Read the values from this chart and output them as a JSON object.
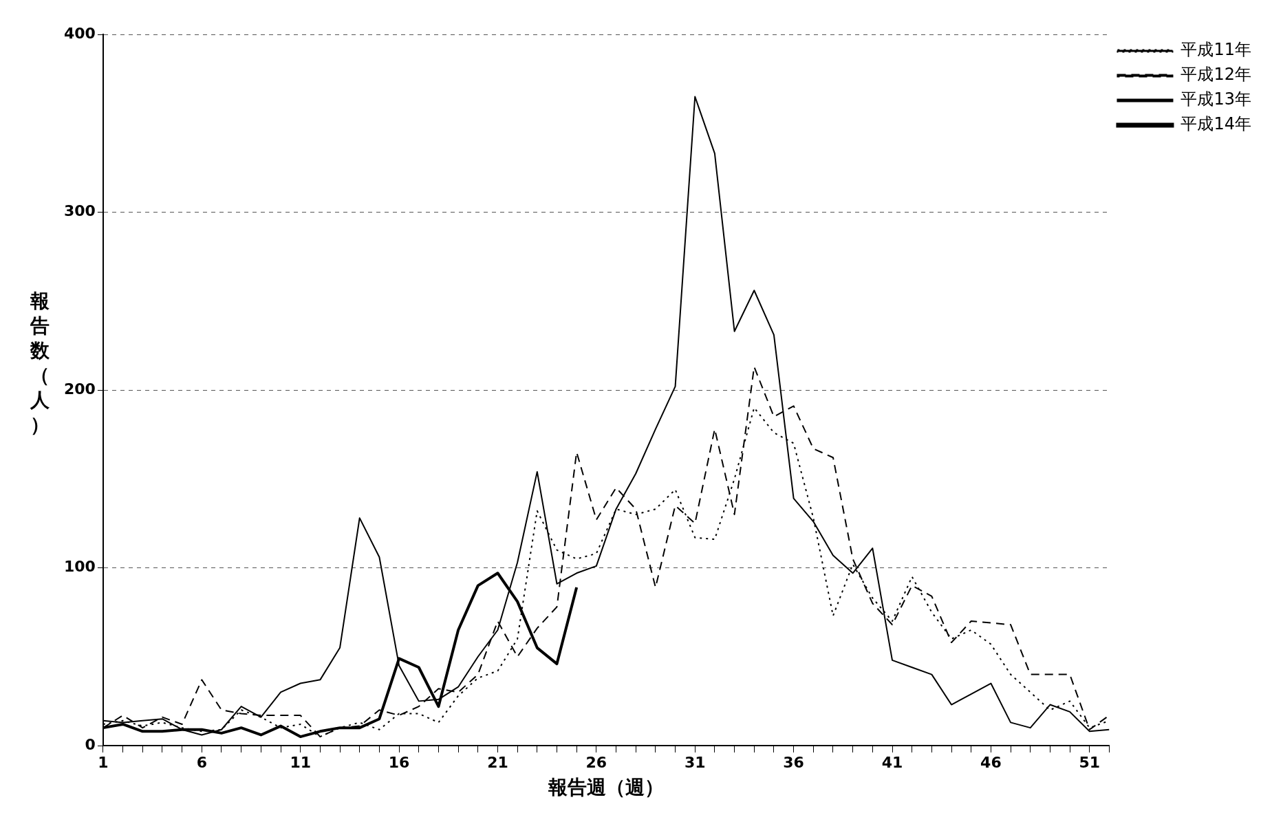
{
  "chart_data": {
    "type": "line",
    "xlabel": "報告週（週）",
    "ylabel": "報告数（人）",
    "x": [
      1,
      2,
      3,
      4,
      5,
      6,
      7,
      8,
      9,
      10,
      11,
      12,
      13,
      14,
      15,
      16,
      17,
      18,
      19,
      20,
      21,
      22,
      23,
      24,
      25,
      26,
      27,
      28,
      29,
      30,
      31,
      32,
      33,
      34,
      35,
      36,
      37,
      38,
      39,
      40,
      41,
      42,
      43,
      44,
      45,
      46,
      47,
      48,
      49,
      50,
      51,
      52
    ],
    "xlim": [
      1,
      52
    ],
    "xticks": [
      1,
      {
        "value": 2,
        "label": null
      },
      {
        "value": 3,
        "label": null
      },
      {
        "value": 4,
        "label": null
      },
      {
        "value": 5,
        "label": null
      },
      6,
      {
        "value": 7,
        "label": null
      },
      {
        "value": 8,
        "label": null
      },
      {
        "value": 9,
        "label": null
      },
      {
        "value": 10,
        "label": null
      },
      11,
      {
        "value": 12,
        "label": null
      },
      {
        "value": 13,
        "label": null
      },
      {
        "value": 14,
        "label": null
      },
      {
        "value": 15,
        "label": null
      },
      16,
      {
        "value": 17,
        "label": null
      },
      {
        "value": 18,
        "label": null
      },
      {
        "value": 19,
        "label": null
      },
      {
        "value": 20,
        "label": null
      },
      21,
      {
        "value": 22,
        "label": null
      },
      {
        "value": 23,
        "label": null
      },
      {
        "value": 24,
        "label": null
      },
      {
        "value": 25,
        "label": null
      },
      26,
      {
        "value": 27,
        "label": null
      },
      {
        "value": 28,
        "label": null
      },
      {
        "value": 29,
        "label": null
      },
      {
        "value": 30,
        "label": null
      },
      31,
      {
        "value": 32,
        "label": null
      },
      {
        "value": 33,
        "label": null
      },
      {
        "value": 34,
        "label": null
      },
      {
        "value": 35,
        "label": null
      },
      36,
      {
        "value": 37,
        "label": null
      },
      {
        "value": 38,
        "label": null
      },
      {
        "value": 39,
        "label": null
      },
      {
        "value": 40,
        "label": null
      },
      41,
      {
        "value": 42,
        "label": null
      },
      {
        "value": 43,
        "label": null
      },
      {
        "value": 44,
        "label": null
      },
      {
        "value": 45,
        "label": null
      },
      46,
      {
        "value": 47,
        "label": null
      },
      {
        "value": 48,
        "label": null
      },
      {
        "value": 49,
        "label": null
      },
      {
        "value": 50,
        "label": null
      },
      51,
      {
        "value": 52,
        "label": null
      }
    ],
    "ylim": [
      0,
      400
    ],
    "yticks": [
      0,
      100,
      200,
      300,
      400
    ],
    "grid": "y",
    "legend": "right",
    "marker": "none",
    "series": [
      {
        "name": "平成11年",
        "color": "#000000",
        "line_style": "dotted",
        "values": [
          12,
          14,
          11,
          13,
          10,
          8,
          9,
          20,
          16,
          10,
          12,
          5,
          10,
          13,
          9,
          18,
          18,
          13,
          28,
          38,
          42,
          60,
          132,
          110,
          105,
          108,
          133,
          130,
          133,
          144,
          117,
          116,
          150,
          190,
          176,
          170,
          128,
          73,
          102,
          83,
          70,
          95,
          75,
          60,
          65,
          57,
          40,
          30,
          20,
          25,
          10,
          14
        ]
      },
      {
        "name": "平成12年",
        "color": "#000000",
        "line_style": "dashed",
        "values": [
          10,
          17,
          10,
          16,
          12,
          37,
          20,
          18,
          17,
          17,
          17,
          5,
          10,
          11,
          20,
          17,
          22,
          32,
          30,
          40,
          70,
          50,
          66,
          78,
          165,
          127,
          145,
          133,
          89,
          135,
          125,
          178,
          130,
          213,
          185,
          191,
          167,
          162,
          105,
          80,
          68,
          90,
          84,
          58,
          70,
          69,
          68,
          40,
          40,
          40,
          9,
          17
        ]
      },
      {
        "name": "平成13年",
        "color": "#000000",
        "line_style": "solid",
        "values": [
          14,
          13,
          14,
          15,
          9,
          6,
          9,
          22,
          16,
          30,
          35,
          37,
          55,
          128,
          106,
          45,
          25,
          26,
          33,
          50,
          65,
          103,
          154,
          91,
          97,
          101,
          133,
          153,
          178,
          202,
          365,
          333,
          233,
          256,
          231,
          139,
          126,
          107,
          97,
          111,
          48,
          44,
          40,
          23,
          29,
          35,
          13,
          10,
          23,
          19,
          8,
          9
        ]
      },
      {
        "name": "平成14年",
        "color": "#000000",
        "line_style": "solid",
        "values": [
          10,
          12,
          8,
          8,
          9,
          9,
          7,
          10,
          6,
          11,
          5,
          8,
          10,
          10,
          15,
          49,
          44,
          22,
          65,
          90,
          97,
          81,
          55,
          46,
          89,
          null,
          null,
          null,
          null,
          null,
          null,
          null,
          null,
          null,
          null,
          null,
          null,
          null,
          null,
          null,
          null,
          null,
          null,
          null,
          null,
          null,
          null,
          null,
          null,
          null,
          null,
          null
        ]
      }
    ]
  }
}
